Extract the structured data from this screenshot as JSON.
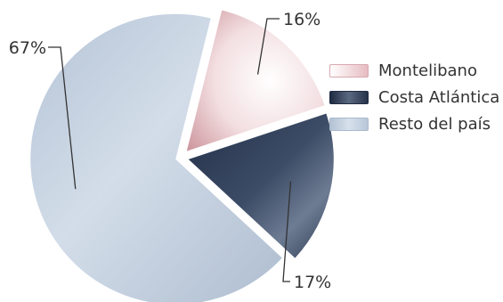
{
  "chart_data": {
    "type": "pie",
    "title": "",
    "slices": [
      {
        "label": "Montelibano",
        "value": 16,
        "label_text": "16%",
        "color": "#ecc9cc"
      },
      {
        "label": "Costa Atlántica",
        "value": 17,
        "label_text": "17%",
        "color": "#2e3d55"
      },
      {
        "label": "Resto del país",
        "value": 67,
        "label_text": "67%",
        "color": "#c3d0de"
      }
    ],
    "legend_position": "right"
  }
}
